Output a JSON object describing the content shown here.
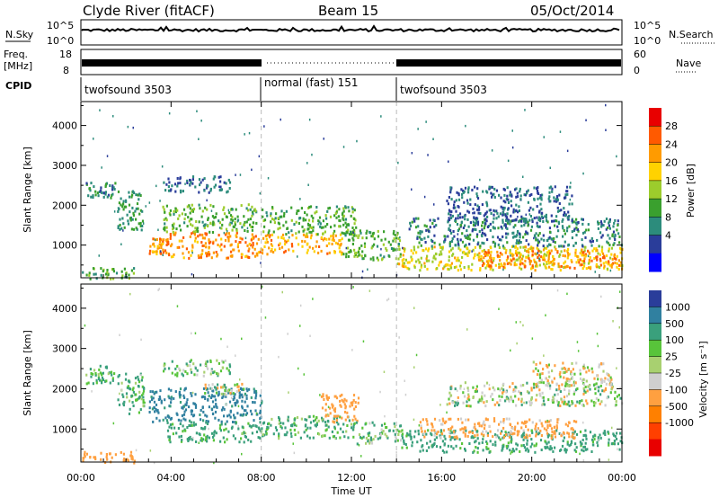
{
  "header": {
    "station": "Clyde River (fitACF)",
    "beam": "Beam 15",
    "date": "05/Oct/2014"
  },
  "noise_panel": {
    "left_label": "N.Sky",
    "right_label": "N.Search",
    "left_ticks": [
      "10^5",
      "10^0"
    ],
    "right_ticks": [
      "10^5",
      "10^0"
    ]
  },
  "freq_panel": {
    "left_label_1": "Freq.",
    "left_label_2": "[MHz]",
    "right_label": "Nave",
    "left_ticks": [
      "18",
      "8"
    ],
    "right_ticks": [
      "60",
      "0"
    ]
  },
  "cpid": {
    "label": "CPID",
    "segments": [
      {
        "name": "twofsound 3503",
        "start_h": 0,
        "end_h": 8
      },
      {
        "name": "normal (fast) 151",
        "start_h": 8,
        "end_h": 14
      },
      {
        "name": "twofsound 3503",
        "start_h": 14,
        "end_h": 24
      }
    ]
  },
  "chart_data": [
    {
      "type": "heatmap",
      "title": "Power",
      "ylabel": "Slant Range [km]",
      "xlabel": "Time UT",
      "ylim": [
        180,
        4600
      ],
      "xlim": [
        0,
        24
      ],
      "yticks": [
        1000,
        2000,
        3000,
        4000
      ],
      "colorbar": {
        "label": "Power [dB]",
        "ticks": [
          "4",
          "8",
          "12",
          "16",
          "20",
          "24",
          "28"
        ],
        "colors": [
          "#0000ff",
          "#2a3d9a",
          "#2c8c7c",
          "#3aa02e",
          "#9ccc2c",
          "#ffd200",
          "#ff9b00",
          "#ff5a00",
          "#e80000"
        ]
      },
      "bands": [
        {
          "t0": 0.0,
          "t1": 2.4,
          "r0": 180,
          "r1": 460,
          "value": 14
        },
        {
          "t0": 0.2,
          "t1": 1.5,
          "r0": 2150,
          "r1": 2600,
          "value": 10
        },
        {
          "t0": 1.6,
          "t1": 2.8,
          "r0": 1400,
          "r1": 2400,
          "value": 12
        },
        {
          "t0": 3.0,
          "t1": 3.8,
          "r0": 800,
          "r1": 1200,
          "value": 26
        },
        {
          "t0": 3.8,
          "t1": 8.0,
          "r0": 700,
          "r1": 1350,
          "value": 27
        },
        {
          "t0": 3.6,
          "t1": 7.8,
          "r0": 1350,
          "r1": 2050,
          "value": 15
        },
        {
          "t0": 3.6,
          "t1": 6.6,
          "r0": 2350,
          "r1": 2750,
          "value": 8
        },
        {
          "t0": 8.0,
          "t1": 11.6,
          "r0": 800,
          "r1": 1300,
          "value": 25
        },
        {
          "t0": 8.0,
          "t1": 12.2,
          "r0": 1300,
          "r1": 2000,
          "value": 14
        },
        {
          "t0": 11.6,
          "t1": 14.2,
          "r0": 650,
          "r1": 1400,
          "value": 15
        },
        {
          "t0": 14.0,
          "t1": 24.0,
          "r0": 400,
          "r1": 1000,
          "value": 21
        },
        {
          "t0": 17.6,
          "t1": 24.0,
          "r0": 450,
          "r1": 900,
          "value": 27
        },
        {
          "t0": 14.5,
          "t1": 24.0,
          "r0": 1000,
          "r1": 1700,
          "value": 10
        },
        {
          "t0": 16.2,
          "t1": 21.8,
          "r0": 1600,
          "r1": 2500,
          "value": 8
        }
      ]
    },
    {
      "type": "heatmap",
      "title": "Velocity",
      "ylabel": "Slant Range [km]",
      "xlabel": "Time UT",
      "ylim": [
        180,
        4600
      ],
      "xlim": [
        0,
        24
      ],
      "yticks": [
        1000,
        2000,
        3000,
        4000
      ],
      "xticks": [
        "00:00",
        "04:00",
        "08:00",
        "12:00",
        "16:00",
        "20:00",
        "00:00"
      ],
      "colorbar": {
        "label": "Velocity [m s⁻¹]",
        "ticks": [
          "1000",
          "500",
          "100",
          "25",
          "-25",
          "-100",
          "-500",
          "-1000"
        ],
        "colors": [
          "#2a3d9a",
          "#3080a0",
          "#3aa07c",
          "#58c43a",
          "#a8d070",
          "#cfcfcf",
          "#ffa040",
          "#ff8000",
          "#ff4000",
          "#e80000"
        ]
      },
      "bands": [
        {
          "t0": 0.0,
          "t1": 2.4,
          "r0": 180,
          "r1": 460,
          "value": -300
        },
        {
          "t0": 0.2,
          "t1": 1.5,
          "r0": 2150,
          "r1": 2600,
          "value": 150
        },
        {
          "t0": 1.6,
          "t1": 2.8,
          "r0": 1400,
          "r1": 2400,
          "value": 120
        },
        {
          "t0": 3.0,
          "t1": 8.0,
          "r0": 1200,
          "r1": 2050,
          "value": 600
        },
        {
          "t0": 3.8,
          "t1": 8.0,
          "r0": 700,
          "r1": 1200,
          "value": 200
        },
        {
          "t0": 3.6,
          "t1": 6.6,
          "r0": 2350,
          "r1": 2750,
          "value": 80
        },
        {
          "t0": 5.4,
          "t1": 7.4,
          "r0": 1850,
          "r1": 2150,
          "value": 0
        },
        {
          "t0": 8.0,
          "t1": 12.0,
          "r0": 800,
          "r1": 1350,
          "value": 150
        },
        {
          "t0": 10.6,
          "t1": 12.3,
          "r0": 1200,
          "r1": 1900,
          "value": -300
        },
        {
          "t0": 12.0,
          "t1": 14.2,
          "r0": 650,
          "r1": 1200,
          "value": 100
        },
        {
          "t0": 14.2,
          "t1": 24.0,
          "r0": 450,
          "r1": 1000,
          "value": 200
        },
        {
          "t0": 15.0,
          "t1": 22.0,
          "r0": 800,
          "r1": 1300,
          "value": -200
        },
        {
          "t0": 16.2,
          "t1": 24.0,
          "r0": 1600,
          "r1": 2200,
          "value": 0
        },
        {
          "t0": 20.0,
          "t1": 23.5,
          "r0": 2100,
          "r1": 2700,
          "value": -80
        }
      ]
    }
  ]
}
